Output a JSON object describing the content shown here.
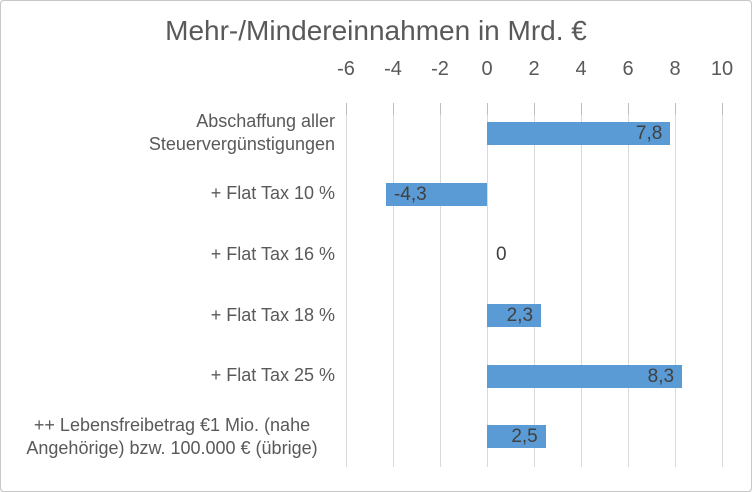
{
  "title": "Mehr-/Mindereinnahmen in Mrd. €",
  "colors": {
    "bar": "#5B9BD5",
    "title_text": "#595959",
    "axis_text": "#595959",
    "category_text": "#595959",
    "data_label_text": "#404040",
    "gridline": "#D9D9D9",
    "tick_mark": "#BFBFBF",
    "border": "#C8C8C8",
    "background": "#FFFFFF"
  },
  "chart_data": {
    "type": "bar",
    "orientation": "horizontal",
    "title": "Mehr-/Mindereinnahmen in Mrd. €",
    "xlabel": "",
    "ylabel": "",
    "categories": [
      "Abschaffung aller Steuervergünstigungen",
      "+ Flat Tax 10 %",
      "+ Flat Tax 16 %",
      "+ Flat Tax 18 %",
      "+ Flat Tax 25 %",
      "++ Lebensfreibetrag €1 Mio. (nahe Angehörige) bzw. 100.000 € (übrige)"
    ],
    "values": [
      7.8,
      -4.3,
      0,
      2.3,
      8.3,
      2.5
    ],
    "data_labels": [
      "7,8",
      "-4,3",
      "0",
      "2,3",
      "8,3",
      "2,5"
    ],
    "xlim": [
      -6,
      10
    ],
    "x_ticks": [
      -6,
      -4,
      -2,
      0,
      2,
      4,
      6,
      8,
      10
    ],
    "x_tick_labels": [
      "-6",
      "-4",
      "-2",
      "0",
      "2",
      "4",
      "6",
      "8",
      "10"
    ],
    "grid": true,
    "legend": false,
    "axis_position": "top",
    "data_label_position": "inside-end"
  }
}
